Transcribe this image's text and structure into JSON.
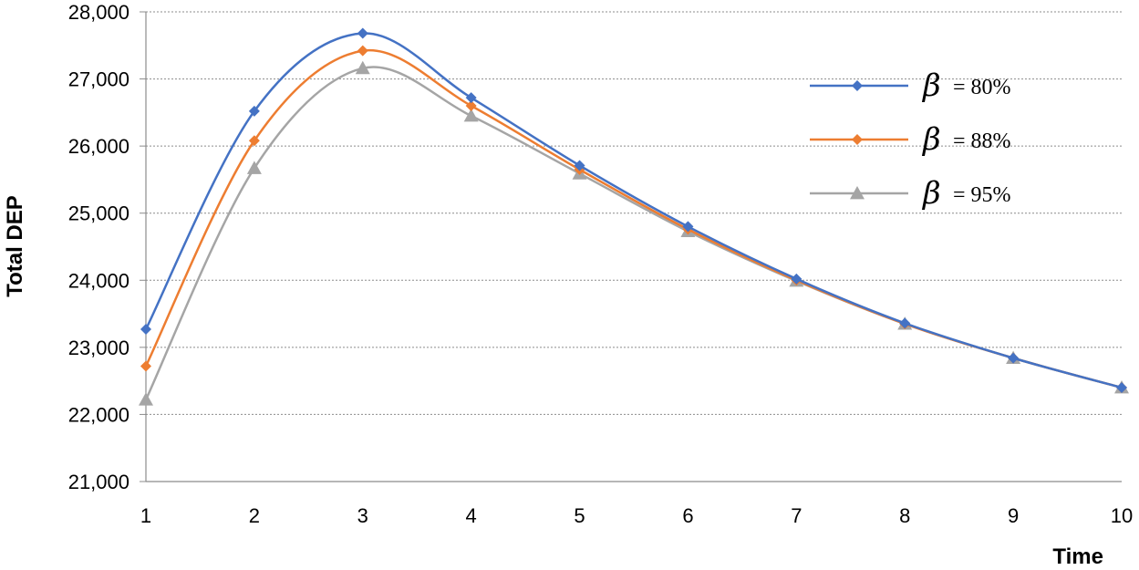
{
  "chart_data": {
    "type": "line",
    "title": "",
    "xlabel": "Time",
    "ylabel": "Total DEP",
    "x": [
      1,
      2,
      3,
      4,
      5,
      6,
      7,
      8,
      9,
      10
    ],
    "x_tick_labels": [
      "1",
      "2",
      "3",
      "4",
      "5",
      "6",
      "7",
      "8",
      "9",
      "10"
    ],
    "y_tick_labels": [
      "21,000",
      "22,000",
      "23,000",
      "24,000",
      "25,000",
      "26,000",
      "27,000",
      "28,000"
    ],
    "y_ticks": [
      21000,
      22000,
      23000,
      24000,
      25000,
      26000,
      27000,
      28000
    ],
    "ylim": [
      21000,
      28000
    ],
    "grid": "horizontal-dotted",
    "legend_position": "top-right",
    "series": [
      {
        "name": "β = 80%",
        "symbol": "β",
        "label_text": "= 80%",
        "color": "#4472C4",
        "marker": "diamond",
        "values": [
          23270,
          26520,
          27680,
          26720,
          25710,
          24800,
          24020,
          23360,
          22840,
          22400
        ]
      },
      {
        "name": "β = 88%",
        "symbol": "β",
        "label_text": "= 88%",
        "color": "#ED7D31",
        "marker": "diamond",
        "values": [
          22720,
          26080,
          27420,
          26600,
          25650,
          24760,
          24000,
          23350,
          22840,
          22400
        ]
      },
      {
        "name": "β = 95%",
        "symbol": "β",
        "label_text": "= 95%",
        "color": "#A5A5A5",
        "marker": "triangle",
        "values": [
          22220,
          25670,
          27160,
          26450,
          25590,
          24730,
          23990,
          23350,
          22840,
          22400
        ]
      }
    ]
  }
}
